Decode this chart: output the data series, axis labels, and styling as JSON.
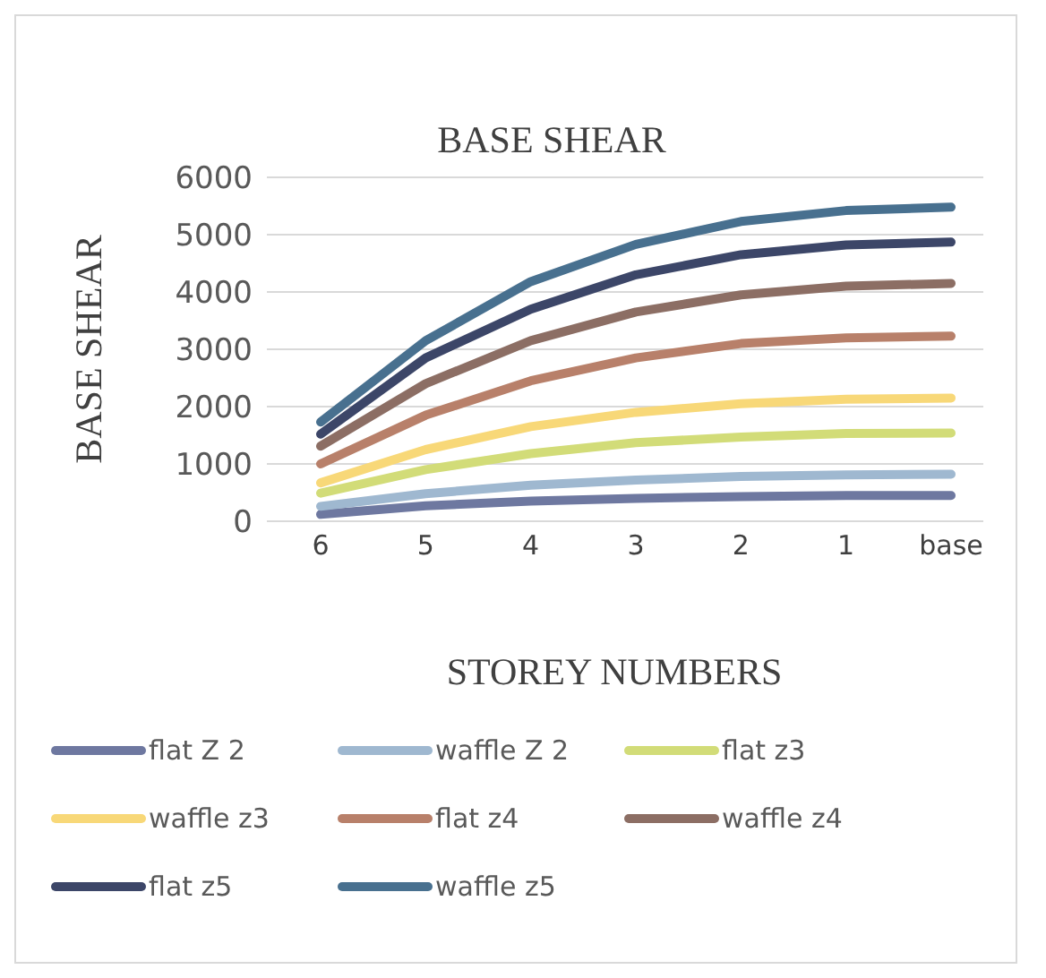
{
  "chart_data": {
    "type": "line",
    "title": "BASE SHEAR",
    "xlabel": "STOREY NUMBERS",
    "ylabel": "BASE SHEAR",
    "categories": [
      "6",
      "5",
      "4",
      "3",
      "2",
      "1",
      "base"
    ],
    "ylim": [
      0,
      6000
    ],
    "yticks": [
      0,
      1000,
      2000,
      3000,
      4000,
      5000,
      6000
    ],
    "grid": "y",
    "legend": "bottom",
    "marker": "none",
    "line_style": "solid",
    "series": [
      {
        "name": "flat Z 2",
        "color": "#6e78a0",
        "values": [
          120,
          270,
          350,
          400,
          430,
          450,
          450
        ]
      },
      {
        "name": "waffle Z 2",
        "color": "#9fb8d0",
        "values": [
          260,
          480,
          630,
          720,
          780,
          810,
          820
        ]
      },
      {
        "name": "flat z3",
        "color": "#d2dc78",
        "values": [
          490,
          900,
          1180,
          1370,
          1470,
          1530,
          1540
        ]
      },
      {
        "name": "waffle z3",
        "color": "#f8d878",
        "values": [
          670,
          1250,
          1650,
          1900,
          2050,
          2130,
          2150
        ]
      },
      {
        "name": "flat z4",
        "color": "#b8806a",
        "values": [
          1000,
          1850,
          2450,
          2850,
          3100,
          3200,
          3230
        ]
      },
      {
        "name": "waffle z4",
        "color": "#8c6e64",
        "values": [
          1310,
          2400,
          3150,
          3650,
          3950,
          4100,
          4150
        ]
      },
      {
        "name": "flat z5",
        "color": "#3c4668",
        "values": [
          1520,
          2850,
          3700,
          4300,
          4650,
          4820,
          4870
        ]
      },
      {
        "name": "waffle z5",
        "color": "#48708f",
        "values": [
          1730,
          3150,
          4180,
          4830,
          5230,
          5420,
          5480
        ]
      }
    ]
  }
}
